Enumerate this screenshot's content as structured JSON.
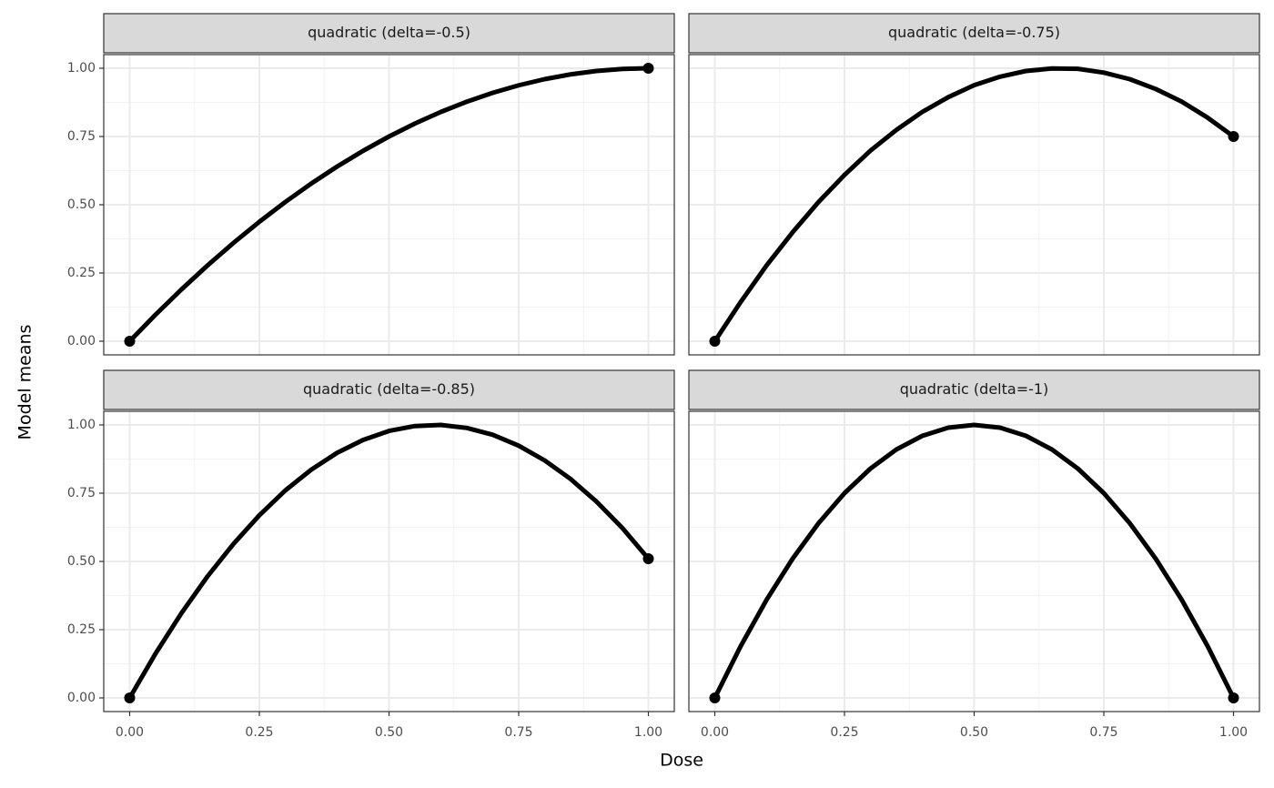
{
  "xlabel": "Dose",
  "ylabel": "Model means",
  "chart_data": [
    {
      "type": "line",
      "title": "quadratic (delta=-0.5)",
      "x": [
        0,
        0.05,
        0.1,
        0.15,
        0.2,
        0.25,
        0.3,
        0.35,
        0.4,
        0.45,
        0.5,
        0.55,
        0.6,
        0.65,
        0.7,
        0.75,
        0.8,
        0.85,
        0.9,
        0.95,
        1
      ],
      "series": [
        {
          "color": "#000000",
          "values": [
            0,
            0.0975,
            0.19,
            0.2775,
            0.36,
            0.4375,
            0.51,
            0.5775,
            0.64,
            0.6975,
            0.75,
            0.7975,
            0.84,
            0.8775,
            0.91,
            0.9375,
            0.96,
            0.9775,
            0.99,
            0.9975,
            1
          ]
        }
      ],
      "points": {
        "x": [
          0,
          1
        ],
        "values": [
          0,
          1
        ]
      },
      "xlim": [
        -0.05,
        1.05
      ],
      "ylim": [
        -0.05,
        1.05
      ],
      "xticks": [
        {
          "value": 0,
          "label": "0.00"
        },
        {
          "value": 0.25,
          "label": "0.25"
        },
        {
          "value": 0.5,
          "label": "0.50"
        },
        {
          "value": 0.75,
          "label": "0.75"
        },
        {
          "value": 1,
          "label": "1.00"
        }
      ],
      "yticks": [
        {
          "value": 0,
          "label": "0.00"
        },
        {
          "value": 0.25,
          "label": "0.25"
        },
        {
          "value": 0.5,
          "label": "0.50"
        },
        {
          "value": 0.75,
          "label": "0.75"
        },
        {
          "value": 1,
          "label": "1.00"
        }
      ],
      "grid": true
    },
    {
      "type": "line",
      "title": "quadratic (delta=-0.75)",
      "x": [
        0,
        0.05,
        0.1,
        0.15,
        0.2,
        0.25,
        0.3,
        0.35,
        0.4,
        0.45,
        0.5,
        0.55,
        0.6,
        0.65,
        0.7,
        0.75,
        0.8,
        0.85,
        0.9,
        0.95,
        1
      ],
      "series": [
        {
          "color": "#000000",
          "values": [
            0,
            0.144,
            0.278,
            0.399,
            0.51,
            0.609,
            0.698,
            0.774,
            0.84,
            0.894,
            0.938,
            0.969,
            0.99,
            0.999,
            0.998,
            0.984,
            0.96,
            0.924,
            0.878,
            0.819,
            0.75
          ]
        }
      ],
      "points": {
        "x": [
          0,
          1
        ],
        "values": [
          0,
          0.75
        ]
      },
      "xlim": [
        -0.05,
        1.05
      ],
      "ylim": [
        -0.05,
        1.05
      ],
      "xticks": [
        {
          "value": 0,
          "label": "0.00"
        },
        {
          "value": 0.25,
          "label": "0.25"
        },
        {
          "value": 0.5,
          "label": "0.50"
        },
        {
          "value": 0.75,
          "label": "0.75"
        },
        {
          "value": 1,
          "label": "1.00"
        }
      ],
      "yticks": [
        {
          "value": 0,
          "label": "0.00"
        },
        {
          "value": 0.25,
          "label": "0.25"
        },
        {
          "value": 0.5,
          "label": "0.50"
        },
        {
          "value": 0.75,
          "label": "0.75"
        },
        {
          "value": 1,
          "label": "1.00"
        }
      ],
      "grid": true
    },
    {
      "type": "line",
      "title": "quadratic (delta=-0.85)",
      "x": [
        0,
        0.05,
        0.1,
        0.15,
        0.2,
        0.25,
        0.3,
        0.35,
        0.4,
        0.45,
        0.5,
        0.55,
        0.6,
        0.65,
        0.7,
        0.75,
        0.8,
        0.85,
        0.9,
        0.95,
        1
      ],
      "series": [
        {
          "color": "#000000",
          "values": [
            0,
            0.163,
            0.311,
            0.445,
            0.564,
            0.669,
            0.76,
            0.836,
            0.898,
            0.945,
            0.978,
            0.996,
            1,
            0.989,
            0.964,
            0.924,
            0.87,
            0.802,
            0.719,
            0.622,
            0.51
          ]
        }
      ],
      "points": {
        "x": [
          0,
          1
        ],
        "values": [
          0,
          0.51
        ]
      },
      "xlim": [
        -0.05,
        1.05
      ],
      "ylim": [
        -0.05,
        1.05
      ],
      "xticks": [
        {
          "value": 0,
          "label": "0.00"
        },
        {
          "value": 0.25,
          "label": "0.25"
        },
        {
          "value": 0.5,
          "label": "0.50"
        },
        {
          "value": 0.75,
          "label": "0.75"
        },
        {
          "value": 1,
          "label": "1.00"
        }
      ],
      "yticks": [
        {
          "value": 0,
          "label": "0.00"
        },
        {
          "value": 0.25,
          "label": "0.25"
        },
        {
          "value": 0.5,
          "label": "0.50"
        },
        {
          "value": 0.75,
          "label": "0.75"
        },
        {
          "value": 1,
          "label": "1.00"
        }
      ],
      "grid": true
    },
    {
      "type": "line",
      "title": "quadratic (delta=-1)",
      "x": [
        0,
        0.05,
        0.1,
        0.15,
        0.2,
        0.25,
        0.3,
        0.35,
        0.4,
        0.45,
        0.5,
        0.55,
        0.6,
        0.65,
        0.7,
        0.75,
        0.8,
        0.85,
        0.9,
        0.95,
        1
      ],
      "series": [
        {
          "color": "#000000",
          "values": [
            0,
            0.19,
            0.36,
            0.51,
            0.64,
            0.75,
            0.84,
            0.91,
            0.96,
            0.99,
            1,
            0.99,
            0.96,
            0.91,
            0.84,
            0.75,
            0.64,
            0.51,
            0.36,
            0.19,
            0
          ]
        }
      ],
      "points": {
        "x": [
          0,
          1
        ],
        "values": [
          0,
          0
        ]
      },
      "xlim": [
        -0.05,
        1.05
      ],
      "ylim": [
        -0.05,
        1.05
      ],
      "xticks": [
        {
          "value": 0,
          "label": "0.00"
        },
        {
          "value": 0.25,
          "label": "0.25"
        },
        {
          "value": 0.5,
          "label": "0.50"
        },
        {
          "value": 0.75,
          "label": "0.75"
        },
        {
          "value": 1,
          "label": "1.00"
        }
      ],
      "yticks": [
        {
          "value": 0,
          "label": "0.00"
        },
        {
          "value": 0.25,
          "label": "0.25"
        },
        {
          "value": 0.5,
          "label": "0.50"
        },
        {
          "value": 0.75,
          "label": "0.75"
        },
        {
          "value": 1,
          "label": "1.00"
        }
      ],
      "grid": true
    }
  ]
}
